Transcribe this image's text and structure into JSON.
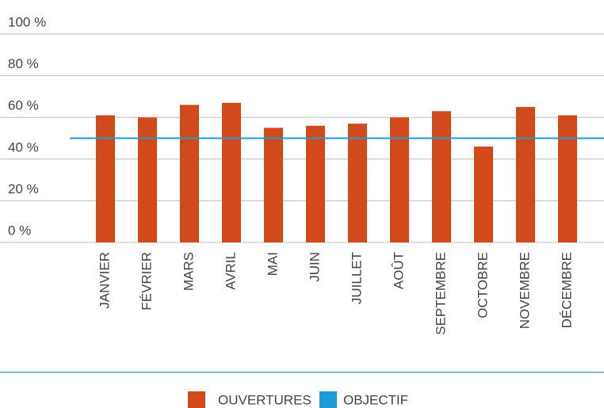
{
  "chart_data": {
    "type": "bar",
    "categories": [
      "JANVIER",
      "FÉVRIER",
      "MARS",
      "AVRIL",
      "MAI",
      "JUIN",
      "JUILLET",
      "AOÛT",
      "SEPTEMBRE",
      "OCTOBRE",
      "NOVEMBRE",
      "DÉCEMBRE"
    ],
    "series": [
      {
        "name": "OUVERTURES",
        "color": "#d2491a",
        "values": [
          61,
          60,
          66,
          67,
          55,
          56,
          57,
          60,
          63,
          46,
          65,
          61
        ]
      }
    ],
    "target": {
      "name": "OBJECTIF",
      "color": "#1a9bd7",
      "value": 50
    },
    "ylim": [
      0,
      100
    ],
    "yticks": [
      {
        "value": 0,
        "label": "0 %"
      },
      {
        "value": 20,
        "label": "20 %"
      },
      {
        "value": 40,
        "label": "40 %"
      },
      {
        "value": 60,
        "label": "60 %"
      },
      {
        "value": 80,
        "label": "80 %"
      },
      {
        "value": 100,
        "label": "100 %"
      }
    ],
    "grid": true
  }
}
